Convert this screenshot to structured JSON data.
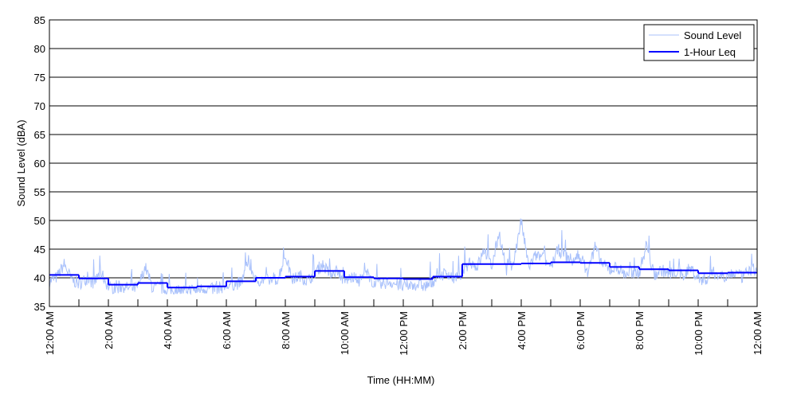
{
  "chart_data": {
    "type": "line",
    "title": "",
    "xlabel": "Time (HH:MM)",
    "ylabel": "Sound Level (dBA)",
    "ylim": [
      35,
      85
    ],
    "yticks": [
      35,
      40,
      45,
      50,
      55,
      60,
      65,
      70,
      75,
      80,
      85
    ],
    "xlim_hours": [
      0,
      24
    ],
    "xtick_hours": [
      0,
      2,
      4,
      6,
      8,
      10,
      12,
      14,
      16,
      18,
      20,
      22,
      24
    ],
    "xtick_labels": [
      "12:00 AM",
      "2:00 AM",
      "4:00 AM",
      "6:00 AM",
      "8:00 AM",
      "10:00 AM",
      "12:00 PM",
      "2:00 PM",
      "4:00 PM",
      "6:00 PM",
      "8:00 PM",
      "10:00 PM",
      "12:00 AM"
    ],
    "grid": "horizontal",
    "legend_position": "top-right",
    "series": [
      {
        "name": "Sound Level",
        "color": "#a9c1fb",
        "interval_minutes": 15,
        "values": [
          39.5,
          40.2,
          42.5,
          39.8,
          39,
          40,
          39.2,
          41,
          38.5,
          38.3,
          38.6,
          38.2,
          38.4,
          42,
          38.3,
          38.5,
          37.8,
          38,
          37.9,
          38.1,
          38,
          38.3,
          38.1,
          38.4,
          38.6,
          39,
          39.2,
          43,
          39.5,
          39.8,
          39.6,
          40,
          44,
          39.8,
          40.5,
          39.5,
          41,
          42.5,
          40.8,
          41.5,
          39.5,
          40.2,
          39.6,
          41,
          39.2,
          38.8,
          39.5,
          39,
          38.5,
          38.8,
          39,
          38.6,
          39.5,
          40.5,
          41,
          39.8,
          41,
          43,
          42,
          45,
          42,
          48,
          41.5,
          43,
          50,
          42,
          44,
          43.5,
          42,
          45,
          44,
          43,
          44,
          41,
          45.5,
          42.5,
          41.5,
          42,
          40.8,
          41,
          41,
          46,
          40.5,
          41.5,
          40.8,
          41.2,
          40.5,
          41.8,
          40,
          39.8,
          41,
          40.5,
          40.5,
          41,
          40.2,
          41.5
        ]
      },
      {
        "name": "1-Hour Leq",
        "color": "#0000ff",
        "interval_minutes": 60,
        "values": [
          40.5,
          39.9,
          38.8,
          39.1,
          38.3,
          38.5,
          39.4,
          40.0,
          40.2,
          41.2,
          40.1,
          39.9,
          39.8,
          40.2,
          42.4,
          42.4,
          42.5,
          42.7,
          42.6,
          41.9,
          41.5,
          41.3,
          40.8,
          40.9
        ]
      }
    ]
  }
}
